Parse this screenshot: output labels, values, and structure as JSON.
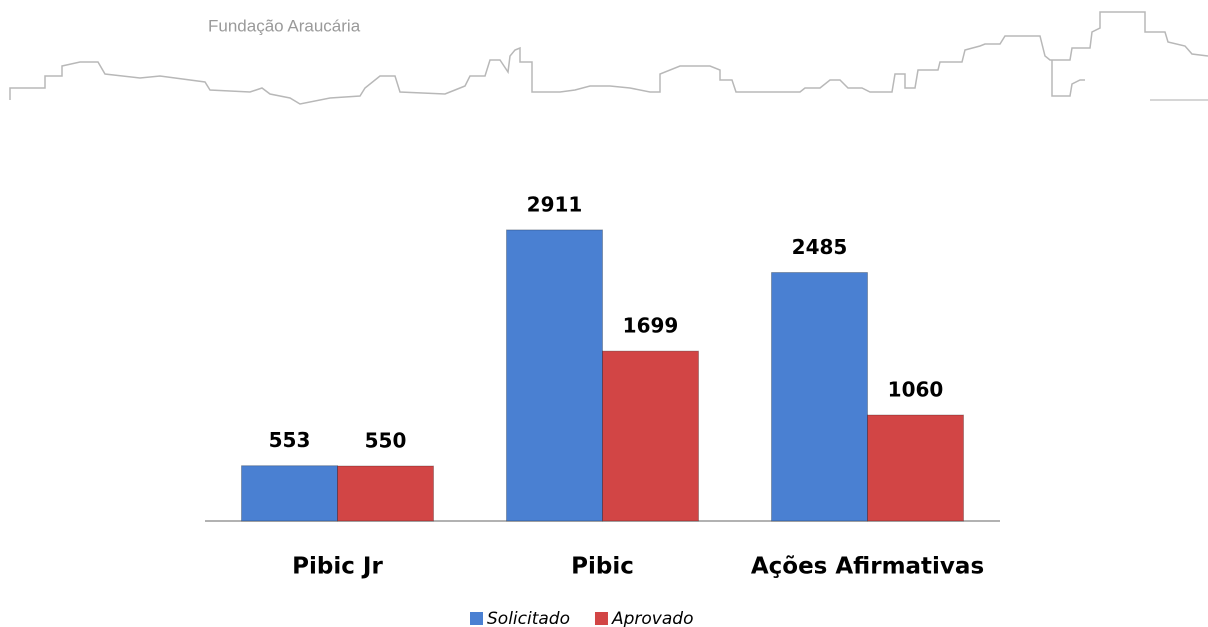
{
  "header": {
    "title": "Fundação Araucária"
  },
  "chart_data": {
    "type": "bar",
    "categories": [
      "Pibic Jr",
      "Pibic",
      "Ações Afirmativas"
    ],
    "series": [
      {
        "name": "Solicitado",
        "color": "#4a80d2",
        "values": [
          553,
          2911,
          2485
        ]
      },
      {
        "name": "Aprovado",
        "color": "#d24545",
        "values": [
          550,
          1699,
          1060
        ]
      }
    ],
    "ylim": [
      0,
      3000
    ]
  }
}
